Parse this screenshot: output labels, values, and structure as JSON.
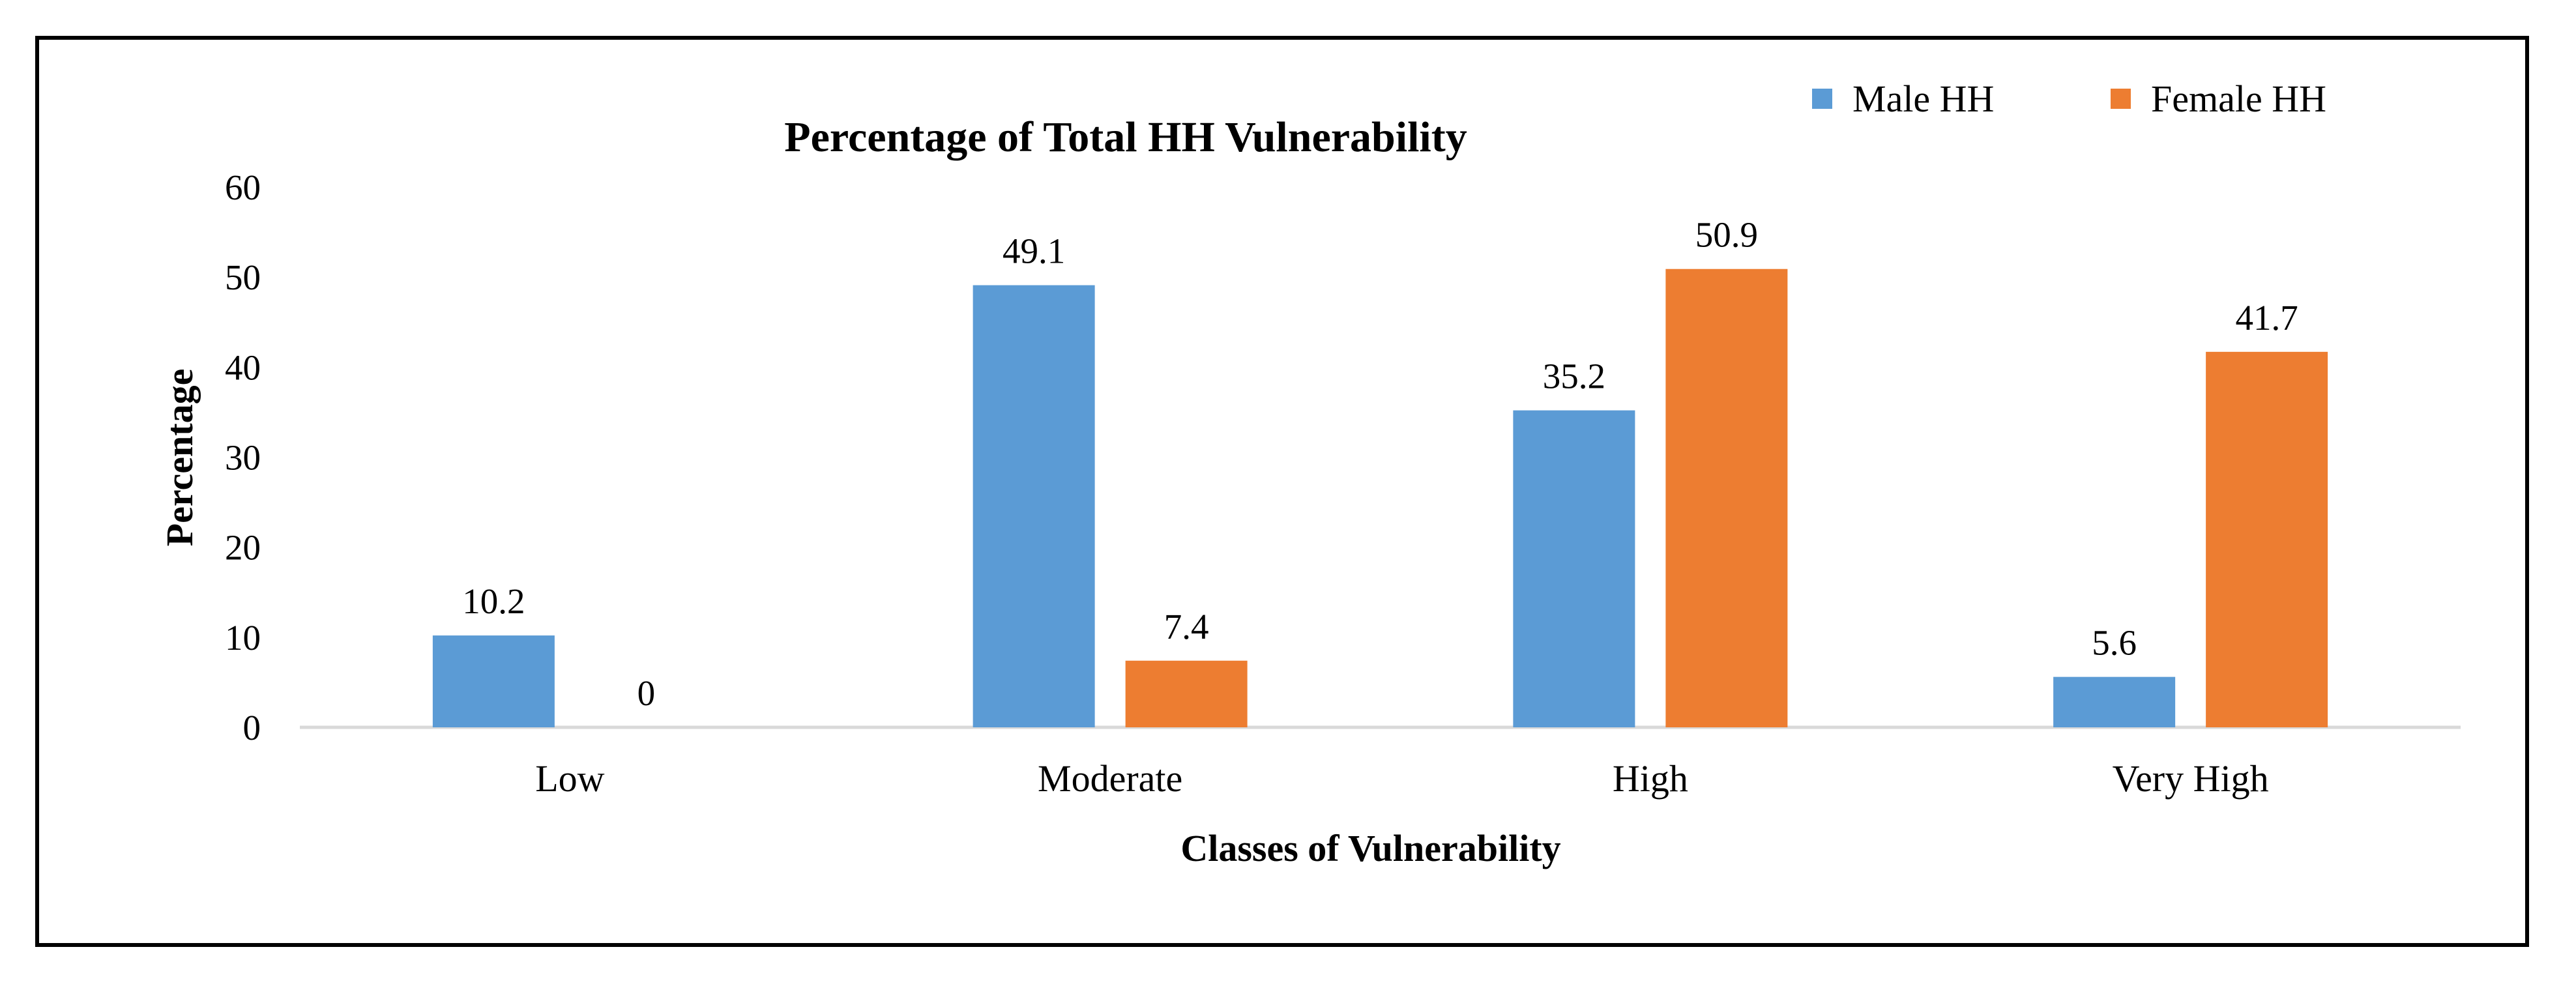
{
  "chart_data": {
    "type": "bar",
    "title": "Percentage of Total HH Vulnerability",
    "xlabel": "Classes of Vulnerability",
    "ylabel": "Percentage",
    "ylim": [
      0,
      60
    ],
    "yticks": [
      0,
      10,
      20,
      30,
      40,
      50,
      60
    ],
    "grid": false,
    "legend_position": "top-right",
    "categories": [
      "Low",
      "Moderate",
      "High",
      "Very High"
    ],
    "series": [
      {
        "name": "Male HH",
        "color": "#5b9bd5",
        "values": [
          10.2,
          49.1,
          35.2,
          5.6
        ]
      },
      {
        "name": "Female HH",
        "color": "#ed7d31",
        "values": [
          0,
          7.4,
          50.9,
          41.7
        ]
      }
    ]
  }
}
